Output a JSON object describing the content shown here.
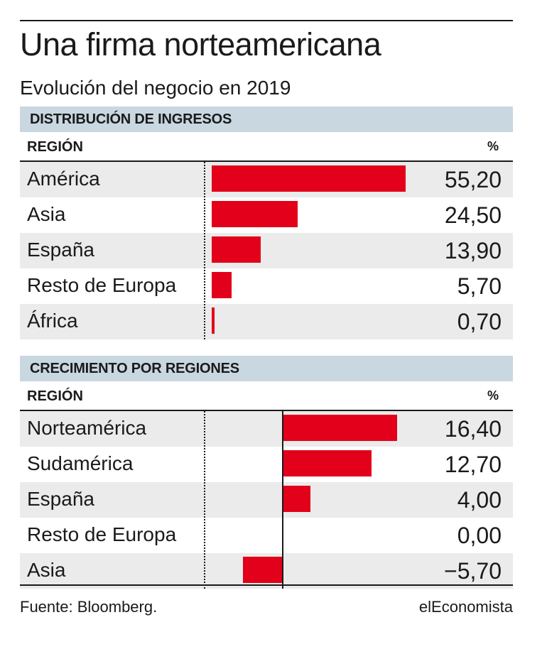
{
  "title": "Una firma norteamericana",
  "subtitle": "Evolución del negocio en 2019",
  "source": "Fuente: Bloomberg.",
  "brand": "elEconomista",
  "colors": {
    "bar": "#e2001a",
    "band": "#c9d7e1",
    "row_shade": "#ebebeb"
  },
  "chart_data": [
    {
      "type": "bar",
      "orientation": "horizontal",
      "title": "DISTRIBUCIÓN DE INGRESOS",
      "column_left": "REGIÓN",
      "column_right": "%",
      "categories": [
        "América",
        "Asia",
        "España",
        "Resto de Europa",
        "África"
      ],
      "values": [
        55.2,
        24.5,
        13.9,
        5.7,
        0.7
      ],
      "labels": [
        "55,20",
        "24,50",
        "13,90",
        "5,70",
        "0,70"
      ],
      "xlim": [
        0,
        55.2
      ]
    },
    {
      "type": "bar",
      "orientation": "horizontal",
      "title": "CRECIMIENTO POR REGIONES",
      "column_left": "REGIÓN",
      "column_right": "%",
      "categories": [
        "Norteamérica",
        "Sudamérica",
        "España",
        "Resto de Europa",
        "Asia"
      ],
      "values": [
        16.4,
        12.7,
        4.0,
        0.0,
        -5.7
      ],
      "labels": [
        "16,40",
        "12,70",
        "4,00",
        "0,00",
        "−5,70"
      ],
      "xlim": [
        -10,
        16.4
      ]
    }
  ]
}
